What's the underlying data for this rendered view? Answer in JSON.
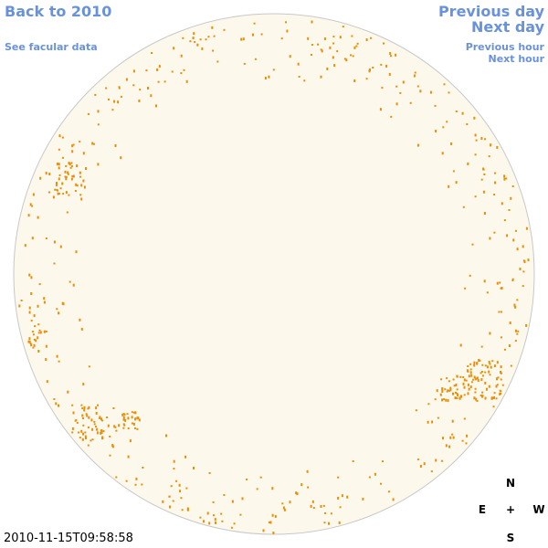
{
  "navigation": {
    "back": "Back to 2010",
    "facular_data": "See facular data",
    "previous_day": "Previous day",
    "next_day": "Next day",
    "previous_hour": "Previous hour",
    "next_hour": "Next hour"
  },
  "timestamp": "2010-11-15T09:58:58",
  "compass": {
    "north": "N",
    "east": "E",
    "center": "+",
    "west": "W",
    "south": "S"
  }
}
